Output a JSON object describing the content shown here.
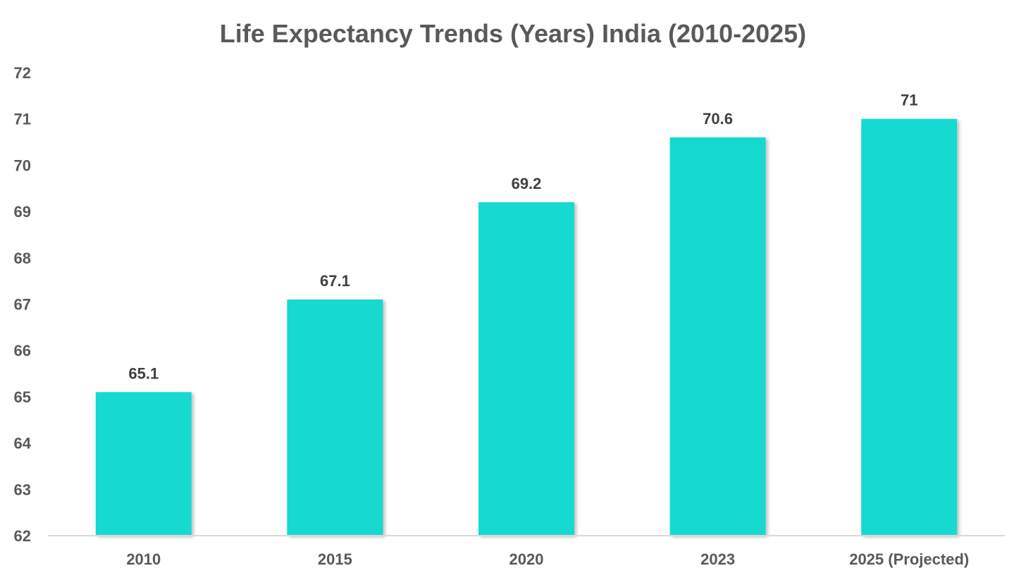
{
  "chart_data": {
    "type": "bar",
    "title": "Life Expectancy Trends (Years) India (2010-2025)",
    "xlabel": "",
    "ylabel": "",
    "categories": [
      "2010",
      "2015",
      "2020",
      "2023",
      "2025 (Projected)"
    ],
    "values": [
      65.1,
      67.1,
      69.2,
      70.6,
      71
    ],
    "data_labels": [
      "65.1",
      "67.1",
      "69.2",
      "70.6",
      "71"
    ],
    "ylim": [
      62,
      72
    ],
    "y_ticks": [
      "62",
      "63",
      "64",
      "65",
      "66",
      "67",
      "68",
      "69",
      "70",
      "71",
      "72"
    ],
    "grid": false,
    "legend": "none",
    "bar_color": "#17D9CF",
    "axis_color": "#D9D9D9",
    "text_color": "#595959",
    "label_color": "#404040"
  }
}
